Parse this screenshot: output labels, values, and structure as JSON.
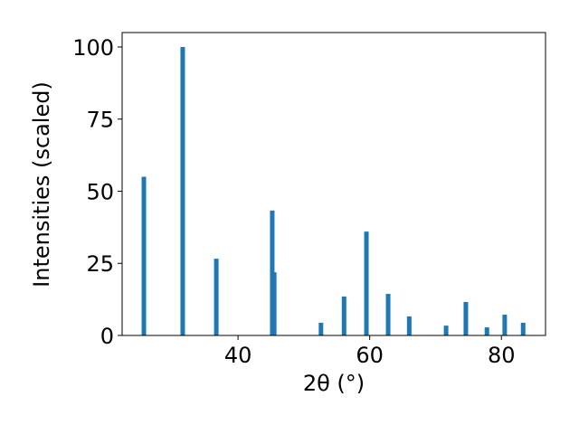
{
  "chart_data": {
    "type": "bar",
    "x": [
      25.7,
      31.6,
      36.7,
      45.2,
      45.5,
      52.6,
      56.1,
      59.5,
      62.8,
      66.0,
      71.6,
      74.6,
      77.8,
      80.5,
      83.3
    ],
    "values": [
      55,
      100,
      26.6,
      43.3,
      21.9,
      4.4,
      13.5,
      36,
      14.4,
      6.6,
      3.4,
      11.6,
      2.8,
      7.2,
      4.4
    ],
    "color": "#1f77b4",
    "xlabel": "2θ (°)",
    "ylabel": "Intensities (scaled)",
    "xlim": [
      22.4,
      86.7
    ],
    "ylim": [
      0,
      105
    ],
    "xticks": [
      40,
      60,
      80
    ],
    "yticks": [
      0,
      25,
      50,
      75,
      100
    ],
    "grid": false
  }
}
